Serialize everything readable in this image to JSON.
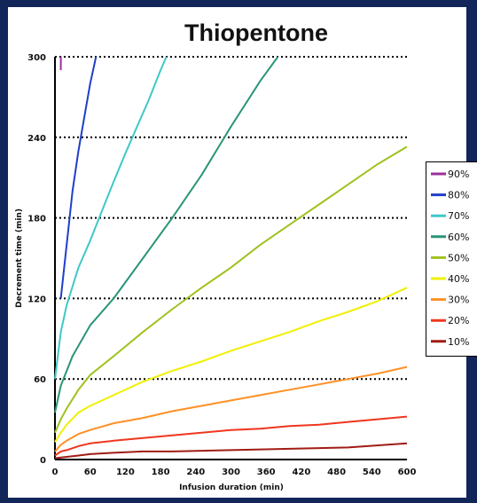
{
  "chart_data": {
    "type": "line",
    "title": "Thiopentone",
    "xlabel": "Infusion duration (min)",
    "ylabel": "Decrement time (min)",
    "xlim": [
      0,
      600
    ],
    "ylim": [
      0,
      300
    ],
    "xticks": [
      "0",
      "60",
      "120",
      "180",
      "240",
      "300",
      "360",
      "420",
      "480",
      "540",
      "600"
    ],
    "yticks": [
      "0",
      "60",
      "120",
      "180",
      "240",
      "300"
    ],
    "grid": "horizontal dotted",
    "legend_position": "right",
    "series": [
      {
        "name": "90%",
        "color": "#9b2f9b",
        "x": [
          10,
          10
        ],
        "y": [
          290,
          300
        ]
      },
      {
        "name": "80%",
        "color": "#1f3fc8",
        "x": [
          10,
          20,
          30,
          40,
          50,
          60,
          70
        ],
        "y": [
          120,
          160,
          200,
          230,
          255,
          280,
          300
        ]
      },
      {
        "name": "70%",
        "color": "#3ec8c8",
        "x": [
          0,
          10,
          20,
          40,
          60,
          80,
          100,
          120,
          140,
          160,
          180,
          190
        ],
        "y": [
          60,
          95,
          115,
          143,
          163,
          185,
          207,
          228,
          248,
          268,
          290,
          300
        ]
      },
      {
        "name": "60%",
        "color": "#2a9478",
        "x": [
          0,
          10,
          30,
          60,
          100,
          150,
          200,
          250,
          300,
          350,
          380
        ],
        "y": [
          35,
          55,
          77,
          100,
          120,
          150,
          180,
          212,
          248,
          282,
          300
        ]
      },
      {
        "name": "50%",
        "color": "#9ec21e",
        "x": [
          0,
          10,
          20,
          40,
          60,
          80,
          100,
          150,
          200,
          250,
          300,
          350,
          400,
          450,
          500,
          550,
          600
        ],
        "y": [
          20,
          30,
          38,
          52,
          63,
          70,
          77,
          95,
          112,
          128,
          143,
          160,
          175,
          190,
          205,
          220,
          233
        ]
      },
      {
        "name": "40%",
        "color": "#f0f000",
        "x": [
          0,
          10,
          20,
          40,
          60,
          100,
          150,
          200,
          250,
          300,
          350,
          400,
          450,
          500,
          550,
          600
        ],
        "y": [
          13,
          20,
          26,
          35,
          40,
          48,
          58,
          66,
          73,
          81,
          88,
          95,
          103,
          110,
          118,
          128
        ]
      },
      {
        "name": "30%",
        "color": "#ff9024",
        "x": [
          0,
          10,
          20,
          40,
          60,
          100,
          150,
          200,
          250,
          300,
          350,
          400,
          450,
          500,
          550,
          600
        ],
        "y": [
          6,
          11,
          14,
          19,
          22,
          27,
          31,
          36,
          40,
          44,
          48,
          52,
          56,
          60,
          64,
          69
        ]
      },
      {
        "name": "20%",
        "color": "#f0361e",
        "x": [
          0,
          10,
          20,
          40,
          60,
          100,
          150,
          200,
          250,
          300,
          350,
          400,
          450,
          500,
          550,
          600
        ],
        "y": [
          3,
          6,
          7,
          10,
          12,
          14,
          16,
          18,
          20,
          22,
          23,
          25,
          26,
          28,
          30,
          32
        ]
      },
      {
        "name": "10%",
        "color": "#a01c14",
        "x": [
          0,
          20,
          40,
          60,
          100,
          150,
          200,
          300,
          400,
          500,
          600
        ],
        "y": [
          1,
          2,
          3,
          4,
          5,
          6,
          6,
          7,
          8,
          9,
          12
        ]
      }
    ]
  }
}
